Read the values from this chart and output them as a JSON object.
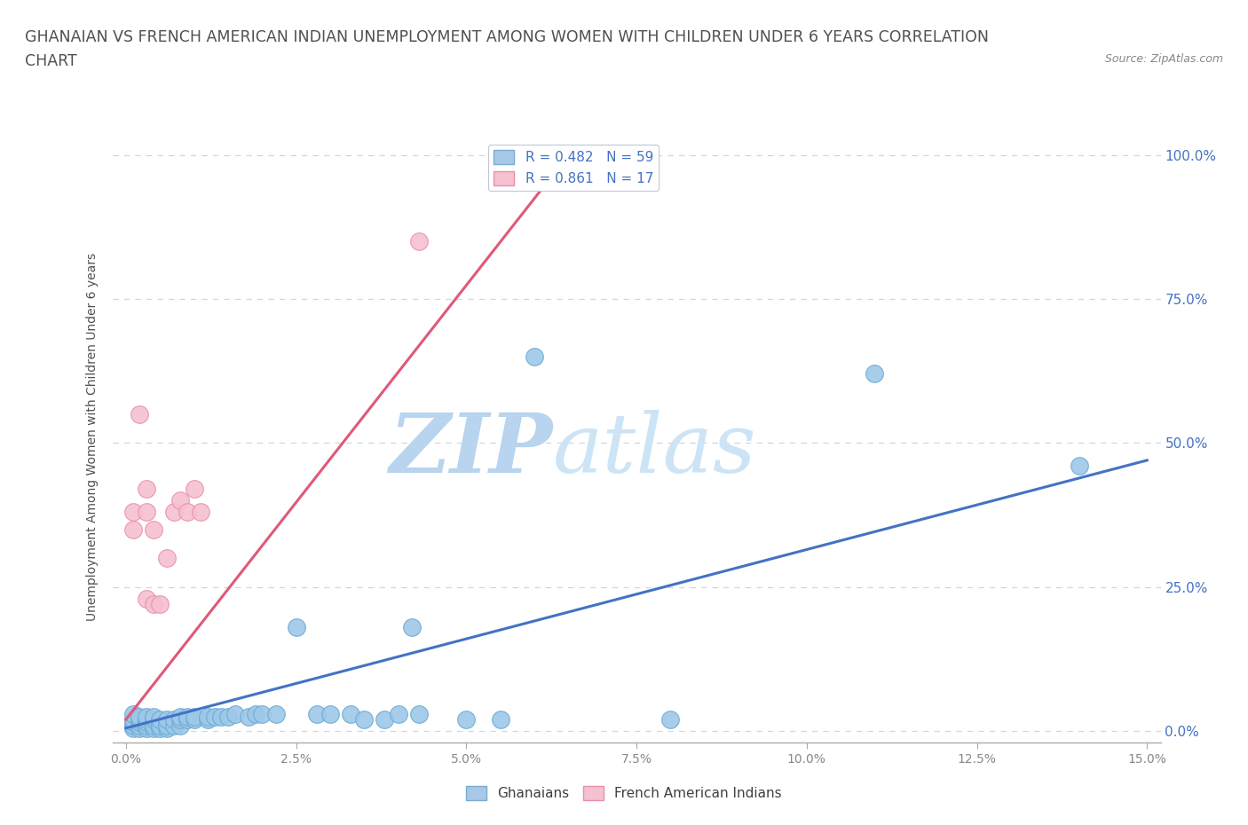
{
  "title_line1": "GHANAIAN VS FRENCH AMERICAN INDIAN UNEMPLOYMENT AMONG WOMEN WITH CHILDREN UNDER 6 YEARS CORRELATION",
  "title_line2": "CHART",
  "source": "Source: ZipAtlas.com",
  "ylabel": "Unemployment Among Women with Children Under 6 years",
  "y_ticks_labels": [
    "0.0%",
    "25.0%",
    "50.0%",
    "75.0%",
    "100.0%"
  ],
  "y_tick_vals": [
    0.0,
    0.25,
    0.5,
    0.75,
    1.0
  ],
  "x_tick_vals": [
    0.0,
    0.025,
    0.05,
    0.075,
    0.1,
    0.125,
    0.15
  ],
  "x_tick_labels": [
    "0.0%",
    "2.5%",
    "5.0%",
    "7.5%",
    "10.0%",
    "12.5%",
    "15.0%"
  ],
  "watermark_zip": "ZIP",
  "watermark_atlas": "atlas",
  "watermark_color": "#cde4f5",
  "ghanaian_scatter": {
    "facecolor": "#9ec8e8",
    "edgecolor": "#6aaad4",
    "points": [
      [
        0.001,
        0.005
      ],
      [
        0.001,
        0.01
      ],
      [
        0.001,
        0.015
      ],
      [
        0.001,
        0.02
      ],
      [
        0.001,
        0.03
      ],
      [
        0.002,
        0.005
      ],
      [
        0.002,
        0.01
      ],
      [
        0.002,
        0.015
      ],
      [
        0.002,
        0.02
      ],
      [
        0.002,
        0.025
      ],
      [
        0.003,
        0.005
      ],
      [
        0.003,
        0.01
      ],
      [
        0.003,
        0.015
      ],
      [
        0.003,
        0.02
      ],
      [
        0.003,
        0.025
      ],
      [
        0.004,
        0.005
      ],
      [
        0.004,
        0.01
      ],
      [
        0.004,
        0.02
      ],
      [
        0.004,
        0.025
      ],
      [
        0.005,
        0.005
      ],
      [
        0.005,
        0.01
      ],
      [
        0.005,
        0.02
      ],
      [
        0.006,
        0.005
      ],
      [
        0.006,
        0.01
      ],
      [
        0.006,
        0.02
      ],
      [
        0.007,
        0.01
      ],
      [
        0.007,
        0.02
      ],
      [
        0.008,
        0.01
      ],
      [
        0.008,
        0.02
      ],
      [
        0.008,
        0.025
      ],
      [
        0.009,
        0.02
      ],
      [
        0.009,
        0.025
      ],
      [
        0.01,
        0.02
      ],
      [
        0.01,
        0.025
      ],
      [
        0.012,
        0.02
      ],
      [
        0.012,
        0.025
      ],
      [
        0.013,
        0.025
      ],
      [
        0.014,
        0.025
      ],
      [
        0.015,
        0.025
      ],
      [
        0.016,
        0.03
      ],
      [
        0.018,
        0.025
      ],
      [
        0.019,
        0.03
      ],
      [
        0.02,
        0.03
      ],
      [
        0.022,
        0.03
      ],
      [
        0.025,
        0.18
      ],
      [
        0.028,
        0.03
      ],
      [
        0.03,
        0.03
      ],
      [
        0.033,
        0.03
      ],
      [
        0.035,
        0.02
      ],
      [
        0.038,
        0.02
      ],
      [
        0.04,
        0.03
      ],
      [
        0.042,
        0.18
      ],
      [
        0.043,
        0.03
      ],
      [
        0.05,
        0.02
      ],
      [
        0.055,
        0.02
      ],
      [
        0.06,
        0.65
      ],
      [
        0.08,
        0.02
      ],
      [
        0.11,
        0.62
      ],
      [
        0.14,
        0.46
      ]
    ]
  },
  "french_scatter": {
    "facecolor": "#f5c0d0",
    "edgecolor": "#e890a8",
    "points": [
      [
        0.001,
        0.38
      ],
      [
        0.001,
        0.35
      ],
      [
        0.002,
        0.55
      ],
      [
        0.003,
        0.23
      ],
      [
        0.003,
        0.38
      ],
      [
        0.003,
        0.42
      ],
      [
        0.004,
        0.22
      ],
      [
        0.004,
        0.35
      ],
      [
        0.005,
        0.22
      ],
      [
        0.006,
        0.3
      ],
      [
        0.007,
        0.38
      ],
      [
        0.008,
        0.4
      ],
      [
        0.009,
        0.38
      ],
      [
        0.01,
        0.42
      ],
      [
        0.011,
        0.38
      ],
      [
        0.043,
        0.85
      ],
      [
        0.06,
        1.0
      ]
    ]
  },
  "ghanaian_line": {
    "color": "#4472c4",
    "x0": 0.0,
    "y0": 0.005,
    "x1": 0.15,
    "y1": 0.47
  },
  "french_line": {
    "color": "#e05878",
    "x0": 0.0,
    "y0": 0.02,
    "x1": 0.065,
    "y1": 1.0
  },
  "background_color": "#ffffff",
  "grid_color": "#c8d8e8",
  "title_color": "#505050",
  "title_fontsize": 12.5,
  "axis_tick_color": "#888888",
  "right_tick_color": "#4472c4"
}
